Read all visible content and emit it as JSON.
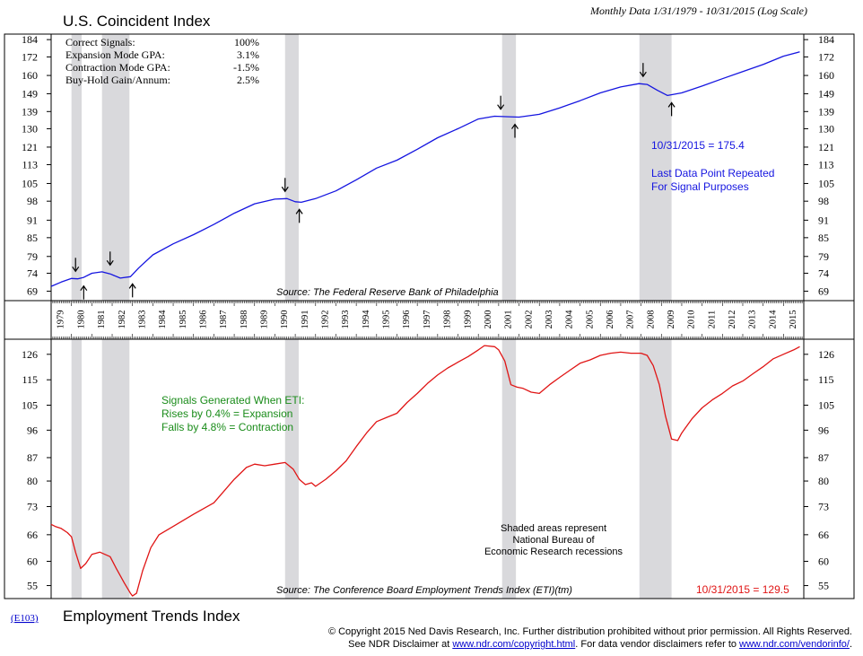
{
  "chart_data": [
    {
      "type": "line",
      "title": "U.S. Coincident Index",
      "subtitle": "Monthly Data 1/31/1979 - 10/31/2015 (Log Scale)",
      "scale": "log",
      "y_ticks": [
        69,
        74,
        79,
        85,
        91,
        98,
        105,
        113,
        121,
        130,
        139,
        149,
        160,
        172,
        184
      ],
      "ylim": [
        66.5,
        188
      ],
      "xlim": [
        1979.0,
        2016.0
      ],
      "stats": [
        {
          "label": "Correct Signals:",
          "value": "100%"
        },
        {
          "label": "Expansion Mode GPA:",
          "value": "3.1%"
        },
        {
          "label": "Contraction Mode GPA:",
          "value": "-1.5%"
        },
        {
          "label": "Buy-Hold Gain/Annum:",
          "value": "2.5%"
        }
      ],
      "series": [
        {
          "color": "#1515e0",
          "x": [
            1979.0,
            1979.5,
            1980.0,
            1980.3,
            1980.6,
            1981.0,
            1981.5,
            1981.9,
            1982.4,
            1982.9,
            1983.3,
            1984.0,
            1985.0,
            1986.0,
            1987.0,
            1988.0,
            1989.0,
            1990.0,
            1990.6,
            1991.0,
            1991.3,
            1992.0,
            1993.0,
            1994.0,
            1995.0,
            1996.0,
            1997.0,
            1998.0,
            1999.0,
            2000.0,
            2000.8,
            2001.5,
            2002.0,
            2003.0,
            2004.0,
            2005.0,
            2006.0,
            2007.0,
            2007.9,
            2008.3,
            2008.8,
            2009.3,
            2010.0,
            2011.0,
            2012.0,
            2013.0,
            2014.0,
            2015.0,
            2015.8
          ],
          "y": [
            70.3,
            71.5,
            72.5,
            72.4,
            72.8,
            74.0,
            74.4,
            73.8,
            72.6,
            73.0,
            75.5,
            79.5,
            83.0,
            86.0,
            89.5,
            93.5,
            97.0,
            98.8,
            99.0,
            97.8,
            97.6,
            99.0,
            102.0,
            106.5,
            111.5,
            115.0,
            120.0,
            125.5,
            130.0,
            135.0,
            136.5,
            136.2,
            136.0,
            137.5,
            141.0,
            145.0,
            149.5,
            153.0,
            155.0,
            154.5,
            151.0,
            148.0,
            149.5,
            153.5,
            158.0,
            162.5,
            167.0,
            172.5,
            175.4
          ]
        }
      ],
      "annotations": [
        "10/31/2015 = 175.4",
        "Last Data Point Repeated",
        "For Signal Purposes"
      ],
      "sell_signals": [
        {
          "x": 1980.2,
          "y": 72.5
        },
        {
          "x": 1981.9,
          "y": 74.3
        },
        {
          "x": 1990.5,
          "y": 99.0
        },
        {
          "x": 2001.1,
          "y": 136.4
        },
        {
          "x": 2008.1,
          "y": 155.0
        }
      ],
      "buy_signals": [
        {
          "x": 1980.6,
          "y": 72.4
        },
        {
          "x": 1983.0,
          "y": 73.0
        },
        {
          "x": 1991.2,
          "y": 97.6
        },
        {
          "x": 2001.8,
          "y": 136.0
        },
        {
          "x": 2009.5,
          "y": 148.0
        }
      ],
      "source": "Source: The Federal Reserve Bank of Philadelphia"
    },
    {
      "type": "line",
      "title": "Employment Trends Index",
      "scale": "log",
      "y_ticks": [
        55,
        60,
        66,
        73,
        80,
        87,
        96,
        105,
        115,
        126
      ],
      "ylim": [
        52.5,
        133
      ],
      "xlim": [
        1979.0,
        2016.0
      ],
      "series": [
        {
          "color": "#e01515",
          "x": [
            1979.0,
            1979.2,
            1979.5,
            1979.8,
            1980.0,
            1980.2,
            1980.45,
            1980.7,
            1981.0,
            1981.4,
            1981.9,
            1982.2,
            1982.6,
            1982.9,
            1983.0,
            1983.2,
            1983.5,
            1983.9,
            1984.3,
            1985.0,
            1986.0,
            1987.0,
            1988.0,
            1988.6,
            1989.0,
            1989.5,
            1990.0,
            1990.5,
            1990.9,
            1991.2,
            1991.5,
            1991.8,
            1992.0,
            1992.5,
            1993.0,
            1993.5,
            1994.0,
            1994.5,
            1995.0,
            1995.5,
            1996.0,
            1996.5,
            1997.0,
            1997.5,
            1998.0,
            1998.5,
            1999.0,
            1999.5,
            2000.0,
            2000.3,
            2000.8,
            2001.0,
            2001.3,
            2001.6,
            2001.9,
            2002.2,
            2002.6,
            2003.0,
            2003.5,
            2004.0,
            2004.5,
            2005.0,
            2005.5,
            2006.0,
            2006.5,
            2007.0,
            2007.5,
            2008.0,
            2008.3,
            2008.6,
            2008.9,
            2009.2,
            2009.5,
            2009.8,
            2010.0,
            2010.5,
            2011.0,
            2011.5,
            2012.0,
            2012.5,
            2013.0,
            2013.5,
            2014.0,
            2014.5,
            2015.0,
            2015.5,
            2015.8
          ],
          "y": [
            68.5,
            68.0,
            67.5,
            66.5,
            65.5,
            62.0,
            58.5,
            59.5,
            61.5,
            62.0,
            61.0,
            58.5,
            55.5,
            53.5,
            53.0,
            53.5,
            58.0,
            63.0,
            66.0,
            68.0,
            71.0,
            74.0,
            80.5,
            84.0,
            85.0,
            84.5,
            85.0,
            85.5,
            83.5,
            80.5,
            79.0,
            79.5,
            78.5,
            80.5,
            83.0,
            86.0,
            90.5,
            95.0,
            99.0,
            100.5,
            102.0,
            106.0,
            109.5,
            113.5,
            117.0,
            120.0,
            122.5,
            125.0,
            128.0,
            130.0,
            129.5,
            128.0,
            123.0,
            113.0,
            112.0,
            111.5,
            110.0,
            109.5,
            113.0,
            116.0,
            119.0,
            122.0,
            123.5,
            125.5,
            126.5,
            127.0,
            126.5,
            126.5,
            125.5,
            121.0,
            113.0,
            101.0,
            93.0,
            92.5,
            95.0,
            100.0,
            104.0,
            107.0,
            109.5,
            112.5,
            114.5,
            117.5,
            120.5,
            124.0,
            126.0,
            128.0,
            129.5
          ]
        }
      ],
      "annotations": [
        "Signals Generated When ETI:",
        "Rises by 0.4% = Expansion",
        "Falls by 4.8% = Contraction",
        "Shaded areas represent",
        "National Bureau of",
        "Economic Research recessions",
        "10/31/2015 = 129.5"
      ],
      "source": "Source: The Conference Board Employment Trends Index (ETI)(tm)"
    }
  ],
  "recessions": [
    {
      "start": 1980.0,
      "end": 1980.5
    },
    {
      "start": 1981.5,
      "end": 1982.85
    },
    {
      "start": 1990.5,
      "end": 1991.17
    },
    {
      "start": 2001.17,
      "end": 2001.85
    },
    {
      "start": 2007.92,
      "end": 2009.5
    }
  ],
  "years": [
    "1979",
    "1980",
    "1981",
    "1982",
    "1983",
    "1984",
    "1985",
    "1986",
    "1987",
    "1988",
    "1989",
    "1990",
    "1991",
    "1992",
    "1993",
    "1994",
    "1995",
    "1996",
    "1997",
    "1998",
    "1999",
    "2000",
    "2001",
    "2002",
    "2003",
    "2004",
    "2005",
    "2006",
    "2007",
    "2008",
    "2009",
    "2010",
    "2011",
    "2012",
    "2013",
    "2014",
    "2015"
  ],
  "chart_code": "(E103)",
  "footer": {
    "copyright": "© Copyright 2015 Ned Davis Research, Inc.  Further distribution prohibited without prior permission.  All Rights Reserved.",
    "disclaimer_prefix": "See NDR Disclaimer at ",
    "disclaimer_link": "www.ndr.com/copyright.html",
    "disclaimer_mid": ".  For data vendor disclaimers refer to ",
    "vendor_link": "www.ndr.com/vendorinfo/",
    "disclaimer_suffix": "."
  }
}
